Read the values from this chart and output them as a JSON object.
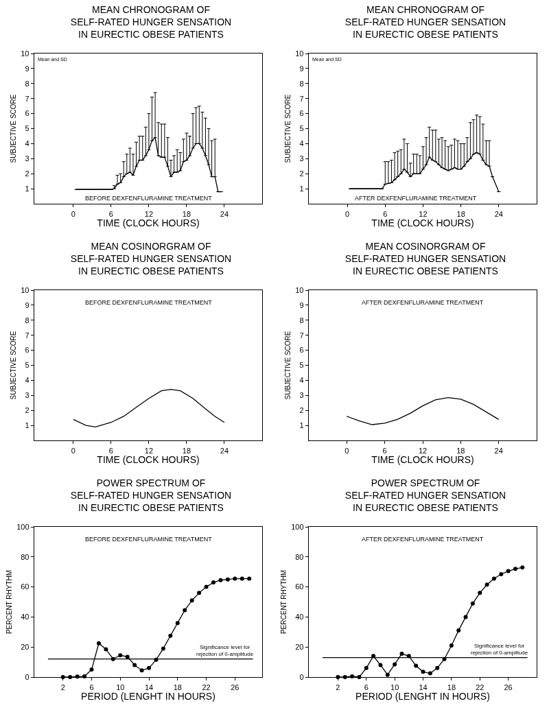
{
  "chart_data": [
    {
      "type": "line",
      "title": "MEAN CHRONOGRAM OF\nSELF-RATED HUNGER SENSATION\nIN EURECTIC OBESE PATIENTS",
      "xlabel": "TIME (CLOCK HOURS)",
      "ylabel": "SUBJECTIVE SCORE",
      "annotations": [
        "Mean and SD",
        "BEFORE DEXFENFLURAMINE TREATMENT"
      ],
      "xlim": [
        -6.2,
        30
      ],
      "xticks": [
        0,
        6,
        12,
        18,
        24
      ],
      "ylim": [
        0,
        10
      ],
      "yticks": [
        1,
        2,
        3,
        4,
        5,
        6,
        7,
        8,
        9,
        10
      ],
      "grid": false,
      "marker": "none",
      "series": [
        {
          "color": "#000000",
          "x": [
            0.5,
            1,
            1.5,
            2,
            2.5,
            3,
            3.5,
            4,
            4.5,
            5,
            5.5,
            6,
            6.5,
            7,
            7.5,
            8,
            8.5,
            9,
            9.5,
            10,
            10.5,
            11,
            11.5,
            12,
            12.5,
            13,
            13.5,
            14,
            14.5,
            15,
            15.5,
            16,
            16.5,
            17,
            17.5,
            18,
            18.5,
            19,
            19.5,
            20,
            20.5,
            21,
            21.5,
            22,
            22.5,
            23,
            23.5
          ],
          "values": [
            0.95,
            0.95,
            0.95,
            0.95,
            0.95,
            0.95,
            0.95,
            0.95,
            0.95,
            0.95,
            0.95,
            0.95,
            1.0,
            1.3,
            1.4,
            1.8,
            2.0,
            2.1,
            1.9,
            2.5,
            2.9,
            2.9,
            3.2,
            3.6,
            4.2,
            4.4,
            3.2,
            3.1,
            3.1,
            2.5,
            1.8,
            2.1,
            2.1,
            2.2,
            2.8,
            2.9,
            3.2,
            3.7,
            4.0,
            4.0,
            3.7,
            3.2,
            2.6,
            1.8,
            1.8,
            0.8,
            0.8
          ],
          "errors": [
            null,
            null,
            null,
            null,
            null,
            null,
            null,
            null,
            null,
            null,
            null,
            null,
            [
              1.0,
              1.2
            ],
            [
              1.3,
              1.9
            ],
            [
              1.4,
              2.0
            ],
            [
              1.8,
              2.8
            ],
            [
              2.0,
              3.3
            ],
            [
              2.1,
              3.7
            ],
            [
              1.9,
              3.3
            ],
            [
              2.5,
              4.1
            ],
            [
              2.9,
              4.5
            ],
            [
              2.9,
              4.5
            ],
            [
              3.2,
              5.1
            ],
            [
              3.6,
              6.0
            ],
            [
              4.2,
              7.1
            ],
            [
              4.4,
              7.4
            ],
            [
              3.2,
              5.4
            ],
            [
              3.1,
              5.3
            ],
            [
              3.1,
              5.3
            ],
            [
              2.5,
              4.4
            ],
            [
              1.8,
              2.9
            ],
            [
              2.1,
              3.2
            ],
            [
              2.1,
              3.6
            ],
            [
              2.2,
              3.4
            ],
            [
              2.8,
              4.3
            ],
            [
              2.9,
              4.7
            ],
            [
              3.2,
              4.5
            ],
            [
              3.7,
              6.0
            ],
            [
              4.0,
              6.4
            ],
            [
              4.0,
              6.5
            ],
            [
              3.7,
              6.1
            ],
            [
              3.2,
              5.7
            ],
            [
              2.6,
              5.0
            ],
            [
              1.8,
              4.2
            ],
            [
              1.8,
              4.3
            ],
            null,
            null
          ]
        }
      ]
    },
    {
      "type": "line",
      "title": "MEAN CHRONOGRAM OF\nSELF-RATED HUNGER SENSATION\nIN EURECTIC OBESE PATIENTS",
      "xlabel": "TIME (CLOCK HOURS)",
      "ylabel": "SUBJECTIVE SCORE",
      "annotations": [
        "Mean and SD",
        "AFTER DEXFENFLURAMINE TREATMENT"
      ],
      "xlim": [
        -6.1,
        30
      ],
      "xticks": [
        0,
        6,
        12,
        18,
        24
      ],
      "ylim": [
        0,
        10
      ],
      "yticks": [
        1,
        2,
        3,
        4,
        5,
        6,
        7,
        8,
        9,
        10
      ],
      "grid": false,
      "marker": "none",
      "series": [
        {
          "color": "#000000",
          "x": [
            0.5,
            1,
            1.5,
            2,
            2.5,
            3,
            3.5,
            4,
            4.5,
            5,
            5.5,
            6,
            6.5,
            7,
            7.5,
            8,
            8.5,
            9,
            9.5,
            10,
            10.5,
            11,
            11.5,
            12,
            12.5,
            13,
            13.5,
            14,
            14.5,
            15,
            15.5,
            16,
            16.5,
            17,
            17.5,
            18,
            18.5,
            19,
            19.5,
            20,
            20.5,
            21,
            21.5,
            22,
            22.5,
            23,
            24
          ],
          "values": [
            1.0,
            1.0,
            1.0,
            1.0,
            1.0,
            1.0,
            1.0,
            1.0,
            1.0,
            1.0,
            1.0,
            1.3,
            1.35,
            1.4,
            1.6,
            1.8,
            2.0,
            2.3,
            2.1,
            1.8,
            2.0,
            2.0,
            2.0,
            2.3,
            2.6,
            3.1,
            2.9,
            2.8,
            2.6,
            2.4,
            2.3,
            2.2,
            2.3,
            2.4,
            2.3,
            2.3,
            2.5,
            2.8,
            3.0,
            3.3,
            3.4,
            3.3,
            2.9,
            2.6,
            2.5,
            1.8,
            0.8
          ],
          "errors": [
            null,
            null,
            null,
            null,
            null,
            null,
            null,
            null,
            null,
            null,
            null,
            [
              1.3,
              2.8
            ],
            [
              1.35,
              2.8
            ],
            [
              1.4,
              2.9
            ],
            [
              1.6,
              3.4
            ],
            [
              1.8,
              3.5
            ],
            [
              2.0,
              3.6
            ],
            [
              2.3,
              4.3
            ],
            [
              2.1,
              4.0
            ],
            [
              1.8,
              2.7
            ],
            [
              2.0,
              3.3
            ],
            [
              2.0,
              3.3
            ],
            [
              2.0,
              3.2
            ],
            [
              2.3,
              3.8
            ],
            [
              2.6,
              4.4
            ],
            [
              3.1,
              5.1
            ],
            [
              2.9,
              4.9
            ],
            [
              2.8,
              4.9
            ],
            [
              2.6,
              4.3
            ],
            [
              2.4,
              4.4
            ],
            [
              2.3,
              4.2
            ],
            [
              2.2,
              3.8
            ],
            [
              2.3,
              3.9
            ],
            [
              2.4,
              4.3
            ],
            [
              2.3,
              4.2
            ],
            [
              2.3,
              4.0
            ],
            [
              2.5,
              4.0
            ],
            [
              2.8,
              4.4
            ],
            [
              3.0,
              5.4
            ],
            [
              3.3,
              5.6
            ],
            [
              3.4,
              5.9
            ],
            [
              3.3,
              5.8
            ],
            [
              2.9,
              5.3
            ],
            [
              2.6,
              4.2
            ],
            [
              2.5,
              4.2
            ],
            null,
            null
          ]
        }
      ]
    },
    {
      "type": "line",
      "title": "MEAN COSINORGRAM OF\nSELF-RATED HUNGER SENSATION\nIN EURECTIC OBESE PATIENTS",
      "xlabel": "TIME (CLOCK HOURS)",
      "ylabel": "SUBJECTIVE SCORE",
      "annotations": [
        "BEFORE DEXFENFLURAMINE TREATMENT"
      ],
      "xlim": [
        -6.2,
        30
      ],
      "xticks": [
        0,
        6,
        12,
        18,
        24
      ],
      "ylim": [
        0,
        10
      ],
      "yticks": [
        1,
        2,
        3,
        4,
        5,
        6,
        7,
        8,
        9,
        10
      ],
      "grid": false,
      "marker": "none",
      "series": [
        {
          "color": "#000000",
          "x": [
            0,
            2,
            3.5,
            6,
            8,
            10,
            12,
            14,
            15.5,
            17,
            19,
            21,
            22.5,
            24
          ],
          "values": [
            1.4,
            1.0,
            0.9,
            1.2,
            1.6,
            2.2,
            2.8,
            3.3,
            3.4,
            3.3,
            2.8,
            2.1,
            1.6,
            1.2
          ]
        }
      ]
    },
    {
      "type": "line",
      "title": "MEAN COSINORGRAM OF\nSELF-RATED HUNGER SENSATION\nIN EURECTIC OBESE PATIENTS",
      "xlabel": "TIME (CLOCK HOURS)",
      "ylabel": "SUBJECTIVE SCORE",
      "annotations": [
        "AFTER DEXFENFLURAMINE TREATMENT"
      ],
      "xlim": [
        -6.0,
        30
      ],
      "xticks": [
        0,
        6,
        12,
        18,
        24
      ],
      "ylim": [
        0,
        10
      ],
      "yticks": [
        1,
        2,
        3,
        4,
        5,
        6,
        7,
        8,
        9,
        10
      ],
      "grid": false,
      "marker": "none",
      "series": [
        {
          "color": "#000000",
          "x": [
            0,
            2,
            4,
            6,
            8,
            10,
            12,
            14,
            16,
            18,
            20,
            22,
            24
          ],
          "values": [
            1.6,
            1.3,
            1.05,
            1.15,
            1.4,
            1.8,
            2.3,
            2.7,
            2.85,
            2.75,
            2.4,
            1.9,
            1.4
          ]
        }
      ]
    },
    {
      "type": "line",
      "title": "POWER SPECTRUM OF\nSELF-RATED HUNGER SENSATION\nIN EURECTIC OBESE PATIENTS",
      "xlabel": "PERIOD (LENGHT IN HOURS)",
      "ylabel": "PERCENT RHYTHM",
      "annotations": [
        "BEFORE DEXFENFLURAMINE TREATMENT"
      ],
      "xlim": [
        -2,
        29.8
      ],
      "xticks": [
        2,
        6,
        10,
        14,
        18,
        22,
        26
      ],
      "ylim": [
        0,
        100
      ],
      "yticks": [
        0,
        20,
        40,
        60,
        80,
        100
      ],
      "grid": false,
      "marker": "circle",
      "ref_lines": [
        {
          "axis": "y",
          "value": 12,
          "label": "Significance level for\nrejection of 0-amplitude"
        }
      ],
      "series": [
        {
          "color": "#000000",
          "x": [
            2,
            3,
            4,
            5,
            6,
            7,
            8,
            9,
            10,
            11,
            12,
            13,
            14,
            15,
            16,
            17,
            18,
            19,
            20,
            21,
            22,
            23,
            24,
            25,
            26,
            27,
            28
          ],
          "values": [
            0,
            0,
            0.3,
            0.5,
            5,
            22.5,
            18.5,
            12,
            14.5,
            13.5,
            8,
            4.5,
            6,
            11.5,
            19,
            27.5,
            36,
            44.5,
            51,
            56,
            60,
            63,
            64.5,
            65,
            65.5,
            65.5,
            65.5
          ]
        }
      ]
    },
    {
      "type": "line",
      "title": "POWER SPECTRUM OF\nSELF-RATED HUNGER SENSATION\nIN EURECTIC OBESE PATIENTS",
      "xlabel": "PERIOD (LENGHT IN HOURS)",
      "ylabel": "PERCENT RHYTHM",
      "annotations": [
        "AFTER DEXFENFLURAMINE TREATMENT"
      ],
      "xlim": [
        -2.1,
        30
      ],
      "xticks": [
        2,
        6,
        10,
        14,
        18,
        22,
        26
      ],
      "ylim": [
        0,
        100
      ],
      "yticks": [
        0,
        20,
        40,
        60,
        80,
        100
      ],
      "grid": false,
      "marker": "circle",
      "ref_lines": [
        {
          "axis": "y",
          "value": 13,
          "label": "Significance level for\nrejection of 0-amplitude"
        }
      ],
      "series": [
        {
          "color": "#000000",
          "x": [
            2,
            3,
            4,
            5,
            6,
            7,
            8,
            9,
            10,
            11,
            12,
            13,
            14,
            15,
            16,
            17,
            18,
            19,
            20,
            21,
            22,
            23,
            24,
            25,
            26,
            27,
            28
          ],
          "values": [
            0,
            0,
            0.5,
            0,
            6,
            14,
            8,
            1.5,
            8.5,
            15.5,
            14,
            7.5,
            3.5,
            2.5,
            6,
            12,
            21,
            31,
            40,
            49,
            56,
            61.5,
            65.5,
            68.5,
            70.5,
            72,
            73
          ]
        }
      ]
    }
  ]
}
